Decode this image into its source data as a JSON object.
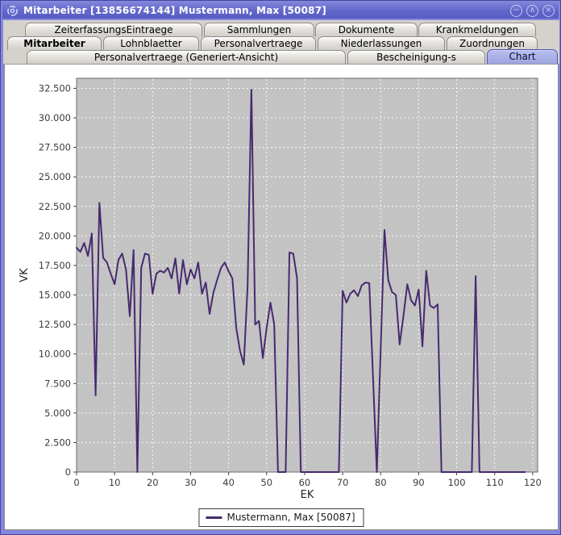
{
  "window": {
    "title": "Mitarbeiter [13856674144] Mustermann, Max [50087]",
    "controls": {
      "minimize": "−",
      "maximize": "∧",
      "close": "×"
    }
  },
  "tabs": {
    "rows": [
      {
        "items": [
          {
            "label": "ZeiterfassungsEintraege"
          },
          {
            "label": "Sammlungen"
          },
          {
            "label": "Dokumente"
          },
          {
            "label": "Krankmeldungen"
          }
        ]
      },
      {
        "items": [
          {
            "label": "Mitarbeiter",
            "bold": true
          },
          {
            "label": "Lohnblaetter"
          },
          {
            "label": "Personalvertraege"
          },
          {
            "label": "Niederlassungen"
          },
          {
            "label": "Zuordnungen"
          }
        ]
      },
      {
        "items": [
          {
            "label": "Personalvertraege (Generiert-Ansicht)"
          },
          {
            "label": "Bescheinigung-s"
          },
          {
            "label": "Chart",
            "selected": true
          }
        ]
      }
    ]
  },
  "colors": {
    "titlebar": "#6166c9",
    "frame": "#8286dc",
    "tab_selected": "#a9afe6",
    "series": "#472a6f",
    "plot_bg": "#c3c3c3",
    "grid": "#ffffff"
  },
  "chart_data": {
    "type": "line",
    "title": "",
    "xlabel": "EK",
    "ylabel": "VK",
    "xlim": [
      0,
      121.3
    ],
    "ylim": [
      0,
      33350
    ],
    "grid": true,
    "legend_position": "bottom",
    "plot_bg": "#c3c3c3",
    "grid_color": "#ffffff",
    "x_ticks": [
      0,
      10,
      20,
      30,
      40,
      50,
      60,
      70,
      80,
      90,
      100,
      110,
      120
    ],
    "x_tick_labels": [
      "0",
      "10",
      "20",
      "30",
      "40",
      "50",
      "60",
      "70",
      "80",
      "90",
      "100",
      "110",
      "120"
    ],
    "y_ticks": [
      0,
      2500,
      5000,
      7500,
      10000,
      12500,
      15000,
      17500,
      20000,
      22500,
      25000,
      27500,
      30000,
      32500
    ],
    "y_tick_labels": [
      "0",
      "2.500",
      "5.000",
      "7.500",
      "10.000",
      "12.500",
      "15.000",
      "17.500",
      "20.000",
      "22.500",
      "25.000",
      "27.500",
      "30.000",
      "32.500"
    ],
    "series": [
      {
        "name": "Mustermann, Max [50087]",
        "color": "#472a6f",
        "x_start": 0,
        "x_step": 1,
        "values": [
          19000,
          18650,
          19400,
          18300,
          20200,
          6500,
          22800,
          18150,
          17750,
          16800,
          15900,
          17950,
          18500,
          17150,
          13200,
          18800,
          0,
          17300,
          18500,
          18400,
          15100,
          16800,
          17050,
          16900,
          17300,
          16400,
          18100,
          15100,
          17950,
          15900,
          17150,
          16400,
          17750,
          15100,
          16050,
          13400,
          15200,
          16300,
          17300,
          17750,
          17000,
          16400,
          12200,
          10250,
          9100,
          15800,
          32400,
          12500,
          12800,
          9650,
          12200,
          14350,
          12500,
          0,
          0,
          0,
          18600,
          18500,
          16450,
          0,
          0,
          0,
          0,
          0,
          0,
          0,
          0,
          0,
          0,
          0,
          15350,
          14350,
          15100,
          15400,
          14900,
          15800,
          16050,
          16000,
          8000,
          0,
          10250,
          20500,
          16250,
          15250,
          15000,
          10800,
          13200,
          15900,
          14550,
          14100,
          15450,
          10650,
          17050,
          14100,
          13900,
          14200,
          0,
          0,
          0,
          0,
          0,
          0,
          0,
          0,
          0,
          16600,
          0,
          0,
          0,
          0,
          0,
          0,
          0,
          0,
          0,
          0,
          0,
          0,
          0
        ]
      }
    ]
  }
}
